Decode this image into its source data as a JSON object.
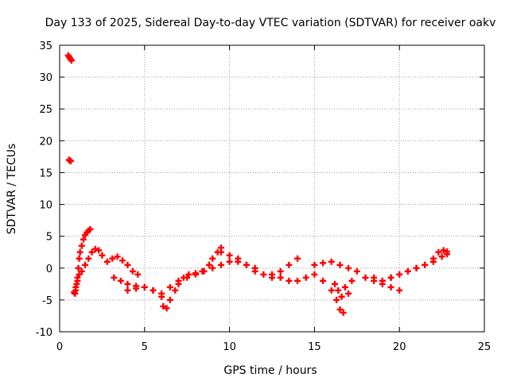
{
  "chart_data": {
    "type": "scatter",
    "title": "Day 133 of 2025, Sidereal Day-to-day VTEC variation (SDTVAR) for receiver oakv",
    "xlabel": "GPS time / hours",
    "ylabel": "SDTVAR / TECUs",
    "xlim": [
      0,
      25
    ],
    "ylim": [
      -10,
      35
    ],
    "xticks": [
      0,
      5,
      10,
      15,
      20,
      25
    ],
    "yticks": [
      -10,
      -5,
      0,
      5,
      10,
      15,
      20,
      25,
      30,
      35
    ],
    "grid": true,
    "marker": "plus",
    "series": [
      {
        "name": "SDTVAR",
        "color": "#ff0000",
        "x": [
          0.5,
          0.55,
          0.6,
          0.65,
          0.7,
          0.55,
          0.6,
          0.65,
          0.9,
          0.95,
          1.0,
          1.05,
          1.1,
          1.15,
          1.2,
          1.3,
          1.4,
          1.5,
          1.6,
          1.7,
          1.8,
          0.85,
          0.95,
          1.05,
          1.15,
          1.3,
          1.5,
          1.7,
          1.9,
          2.1,
          2.3,
          2.5,
          2.8,
          3.1,
          3.4,
          3.7,
          4.0,
          4.3,
          4.6,
          3.2,
          3.6,
          4.0,
          4.5,
          5.0,
          5.5,
          6.0,
          6.5,
          4.0,
          4.5,
          5.0,
          5.5,
          6.0,
          6.1,
          6.3,
          6.5,
          6.8,
          7.0,
          7.3,
          7.6,
          8.0,
          8.4,
          8.8,
          9.0,
          9.3,
          9.5,
          7.0,
          7.5,
          8.0,
          8.5,
          9.0,
          9.5,
          10.0,
          10.5,
          11.0,
          11.5,
          9.5,
          10.0,
          10.5,
          11.0,
          11.5,
          12.0,
          12.5,
          13.0,
          13.5,
          14.0,
          12.5,
          13.0,
          13.5,
          14.0,
          14.5,
          15.0,
          15.5,
          16.0,
          16.3,
          16.5,
          16.7,
          17.0,
          15.0,
          15.5,
          16.0,
          16.5,
          17.0,
          17.5,
          18.0,
          18.5,
          19.0,
          19.5,
          20.0,
          16.2,
          16.4,
          16.6,
          16.8,
          17.2,
          19.0,
          19.5,
          20.0,
          20.5,
          21.0,
          21.5,
          22.0,
          22.3,
          22.6,
          22.8,
          18.5,
          19.0,
          19.5,
          20.0,
          20.5,
          21.0,
          21.5,
          22.0,
          22.5,
          22.8
        ],
        "y": [
          33.4,
          33.2,
          33.0,
          32.8,
          32.6,
          17.0,
          16.9,
          16.8,
          -4.0,
          -3.5,
          -2.5,
          -1.5,
          0.0,
          1.5,
          2.5,
          3.5,
          4.5,
          5.2,
          5.6,
          5.9,
          6.1,
          -3.8,
          -3.0,
          -2.0,
          -1.0,
          -0.5,
          0.5,
          1.5,
          2.5,
          3.0,
          2.8,
          2.0,
          1.0,
          1.5,
          1.8,
          1.2,
          0.5,
          -0.5,
          -1.0,
          -1.5,
          -2.0,
          -2.5,
          -2.8,
          -3.0,
          -3.5,
          -4.0,
          -3.0,
          -3.5,
          -3.2,
          -3.0,
          -3.5,
          -4.5,
          -6.0,
          -6.3,
          -5.0,
          -3.5,
          -2.5,
          -1.5,
          -1.0,
          -0.8,
          -0.5,
          0.5,
          1.5,
          2.5,
          3.2,
          -2.0,
          -1.5,
          -1.0,
          -0.5,
          0.0,
          0.5,
          1.0,
          1.0,
          0.5,
          0.0,
          2.5,
          2.0,
          1.5,
          0.5,
          -0.5,
          -1.0,
          -1.5,
          -0.5,
          0.5,
          1.5,
          -1.0,
          -1.5,
          -2.0,
          -2.0,
          -1.5,
          -1.0,
          -2.0,
          -3.5,
          -5.0,
          -6.5,
          -7.0,
          -4.0,
          0.5,
          0.8,
          1.0,
          0.5,
          0.0,
          -0.5,
          -1.5,
          -2.0,
          -2.5,
          -3.0,
          -3.5,
          -2.5,
          -3.5,
          -4.5,
          -3.0,
          -2.0,
          -2.0,
          -1.5,
          -1.0,
          -0.5,
          0.0,
          0.5,
          1.5,
          2.5,
          2.8,
          2.6,
          -1.5,
          -2.0,
          -1.5,
          -1.0,
          -0.5,
          0.0,
          0.5,
          1.0,
          1.8,
          2.2
        ]
      }
    ]
  }
}
